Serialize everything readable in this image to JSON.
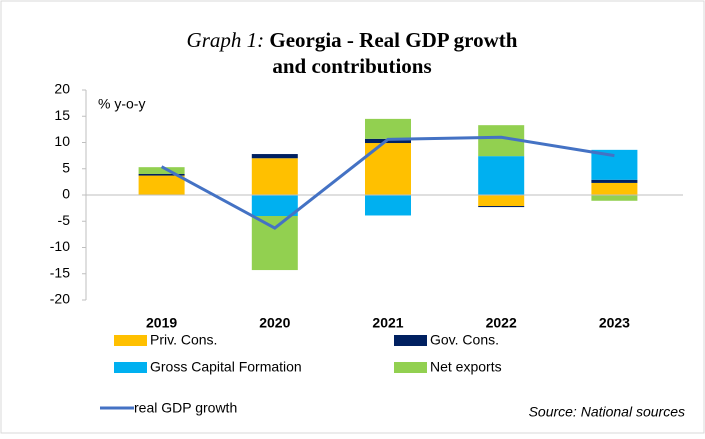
{
  "chart_data": {
    "type": "bar",
    "stacked": true,
    "title_prefix": "Graph 1:",
    "title_lines": [
      "Georgia - Real GDP growth",
      "and contributions"
    ],
    "y_label": "% y-o-y",
    "source": "Source: National sources",
    "categories": [
      "2019",
      "2020",
      "2021",
      "2022",
      "2023"
    ],
    "series": [
      {
        "name": "Priv. Cons.",
        "type": "bar",
        "color": "#ffc000",
        "values": [
          3.7,
          7.0,
          9.9,
          -2.1,
          2.3
        ]
      },
      {
        "name": "Gov. Cons.",
        "type": "bar",
        "color": "#002060",
        "values": [
          0.3,
          0.8,
          0.8,
          -0.2,
          0.6
        ]
      },
      {
        "name": "Gross Capital Formation",
        "type": "bar",
        "color": "#00b0f0",
        "values": [
          0,
          -4.0,
          -3.9,
          7.4,
          5.7
        ]
      },
      {
        "name": "Net exports",
        "type": "bar",
        "color": "#92d050",
        "values": [
          1.3,
          -10.3,
          3.8,
          5.9,
          -1.1
        ]
      },
      {
        "name": "real GDP growth",
        "type": "line",
        "color": "#4472c4",
        "values": [
          5.4,
          -6.3,
          10.6,
          11.0,
          7.5
        ]
      }
    ],
    "ylim": [
      -20,
      20
    ],
    "yticks": [
      20,
      15,
      10,
      5,
      0,
      -5,
      -10,
      -15,
      -20
    ],
    "grid": false
  }
}
